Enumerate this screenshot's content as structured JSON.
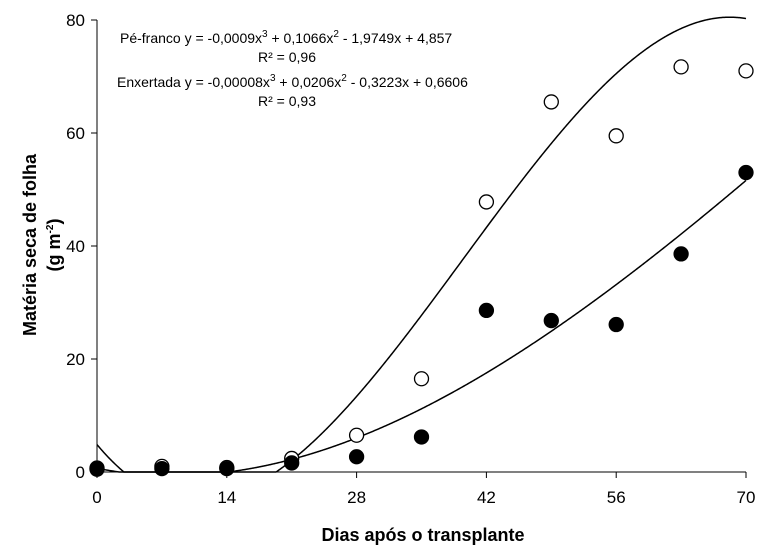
{
  "chart_data": {
    "type": "scatter",
    "xlabel": "Dias após o transplante",
    "ylabel_line1": "Matéria seca de folha",
    "ylabel_line2_pre": "(g m",
    "ylabel_line2_sup": "-2",
    "ylabel_line2_post": ")",
    "xlim": [
      0,
      70
    ],
    "ylim": [
      0,
      80
    ],
    "xticks": [
      0,
      14,
      28,
      42,
      56,
      70
    ],
    "yticks": [
      0,
      20,
      40,
      60,
      80
    ],
    "grid": false,
    "series": [
      {
        "name": "Pé-franco",
        "marker": "open-circle",
        "x": [
          0,
          7,
          14,
          21,
          28,
          35,
          42,
          49,
          56,
          63,
          70
        ],
        "y": [
          0.7,
          1.0,
          0.8,
          2.4,
          6.5,
          16.5,
          47.8,
          65.5,
          59.5,
          71.7,
          71.0
        ],
        "fit_coefficients": [
          -0.0009,
          0.1066,
          -1.9749,
          4.857
        ],
        "equation_prefix": "Pé-franco y = -0,0009x",
        "equation_terms": [
          "3",
          " + 0,1066x",
          "2",
          " - 1,9749x + 4,857"
        ],
        "r2_label": "R² = 0,96"
      },
      {
        "name": "Enxertada",
        "marker": "filled-circle",
        "x": [
          0,
          7,
          14,
          21,
          28,
          35,
          42,
          49,
          56,
          63,
          70
        ],
        "y": [
          0.5,
          0.6,
          0.6,
          1.6,
          2.7,
          6.2,
          28.6,
          26.8,
          26.1,
          38.6,
          53.0
        ],
        "fit_coefficients": [
          -8e-05,
          0.0206,
          -0.3223,
          0.6606
        ],
        "equation_prefix": "Enxertada y = -0,00008x",
        "equation_terms": [
          "3",
          " + 0,0206x",
          "2",
          " - 0,3223x + 0,6606"
        ],
        "r2_label": "R² = 0,93"
      }
    ]
  }
}
